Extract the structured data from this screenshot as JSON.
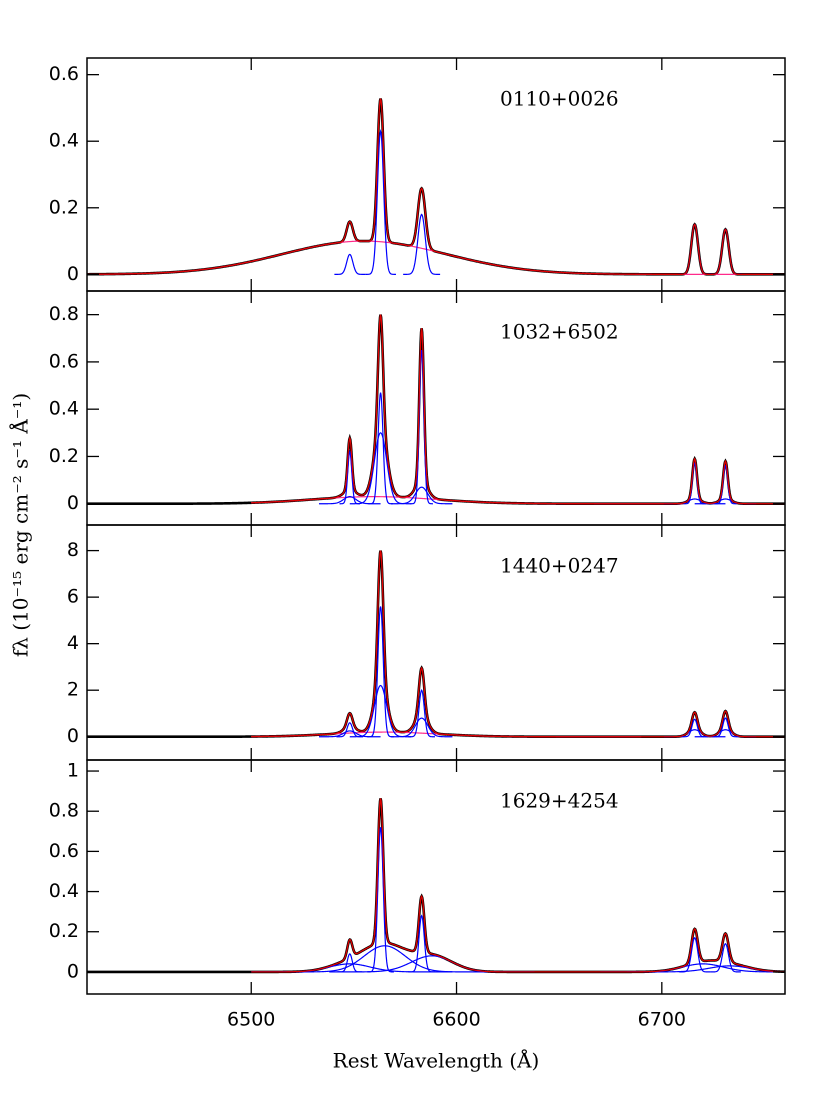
{
  "chart_data": [
    {
      "type": "line",
      "title": "0110+0026",
      "xlim": [
        6420,
        6760
      ],
      "xticks": [
        6500,
        6600,
        6700
      ],
      "ylim": [
        -0.05,
        0.65
      ],
      "yticks": [
        0,
        0.2,
        0.4,
        0.6
      ],
      "fit_xlim": [
        6420,
        6760
      ],
      "data_color": "#000000",
      "fit_color": "#e00000",
      "components": [
        {
          "color": "#ff2a8a",
          "lines": [
            [
              6555,
              0.1,
              40
            ]
          ]
        },
        {
          "color": "#0000ff",
          "lines": [
            [
              6548,
              0.06,
              1.5
            ],
            [
              6563,
              0.43,
              1.5
            ],
            [
              6583,
              0.18,
              1.8
            ],
            [
              6716,
              0.15,
              1.6
            ],
            [
              6731,
              0.135,
              1.6
            ]
          ]
        }
      ]
    },
    {
      "type": "line",
      "title": "1032+6502",
      "xlim": [
        6420,
        6760
      ],
      "xticks": [
        6500,
        6600,
        6700
      ],
      "ylim": [
        -0.09,
        0.9
      ],
      "yticks": [
        0,
        0.2,
        0.4,
        0.6,
        0.8
      ],
      "fit_xlim": [
        6500,
        6760
      ],
      "ylabel": "fλ (10⁻¹⁵ erg cm⁻² s⁻¹ Å⁻¹)",
      "data_color": "#000000",
      "fit_color": "#e00000",
      "components": [
        {
          "color": "#ff2a8a",
          "lines": [
            [
              6560,
              0.03,
              30
            ]
          ]
        },
        {
          "color": "#0000ff",
          "lines": [
            [
              6548,
              0.22,
              1
            ],
            [
              6563,
              0.47,
              1.2
            ],
            [
              6583,
              0.65,
              1.1
            ],
            [
              6716,
              0.17,
              1.1
            ],
            [
              6731,
              0.16,
              1.1
            ],
            [
              6548,
              0.03,
              3
            ],
            [
              6563,
              0.3,
              3
            ],
            [
              6583,
              0.07,
              3
            ],
            [
              6716,
              0.02,
              3
            ],
            [
              6731,
              0.02,
              3
            ]
          ]
        }
      ]
    },
    {
      "type": "line",
      "title": "1440+0247",
      "xlim": [
        6420,
        6760
      ],
      "xticks": [
        6500,
        6600,
        6700
      ],
      "ylim": [
        -1,
        9.1
      ],
      "yticks": [
        0,
        2,
        4,
        6,
        8
      ],
      "fit_xlim": [
        6500,
        6760
      ],
      "xlabel": "Rest Wavelength (Å)",
      "data_color": "#000000",
      "fit_color": "#e00000",
      "components": [
        {
          "color": "#ff2a8a",
          "lines": [
            [
              6565,
              0.2,
              25
            ]
          ]
        },
        {
          "color": "#0000ff",
          "lines": [
            [
              6548,
              0.6,
              1.3
            ],
            [
              6563,
              5.6,
              1.3
            ],
            [
              6583,
              2.0,
              1.3
            ],
            [
              6716,
              0.75,
              1.3
            ],
            [
              6731,
              0.8,
              1.3
            ],
            [
              6548,
              0.25,
              3
            ],
            [
              6563,
              2.2,
              3
            ],
            [
              6583,
              0.8,
              3
            ],
            [
              6716,
              0.3,
              3
            ],
            [
              6731,
              0.3,
              3
            ]
          ]
        }
      ]
    },
    {
      "type": "line",
      "title": "1629+4254",
      "xlim": [
        6420,
        6760
      ],
      "xticks": [
        6500,
        6600,
        6700
      ],
      "ylim": [
        -0.11,
        1.055
      ],
      "yticks": [
        0,
        0.2,
        0.4,
        0.6,
        0.8,
        1
      ],
      "fit_xlim": [
        6500,
        6760
      ],
      "data_color": "#000000",
      "fit_color": "#e00000",
      "components": [
        {
          "color": "#0000ff",
          "lines": [
            [
              6548,
              0.09,
              1.2
            ],
            [
              6563,
              0.72,
              1.3
            ],
            [
              6583,
              0.28,
              1.3
            ],
            [
              6716,
              0.17,
              1.5
            ],
            [
              6731,
              0.14,
              1.5
            ],
            [
              6548,
              0.04,
              10
            ],
            [
              6565,
              0.13,
              10
            ],
            [
              6588,
              0.08,
              10
            ],
            [
              6720,
              0.04,
              10
            ],
            [
              6733,
              0.03,
              10
            ]
          ]
        }
      ]
    }
  ]
}
